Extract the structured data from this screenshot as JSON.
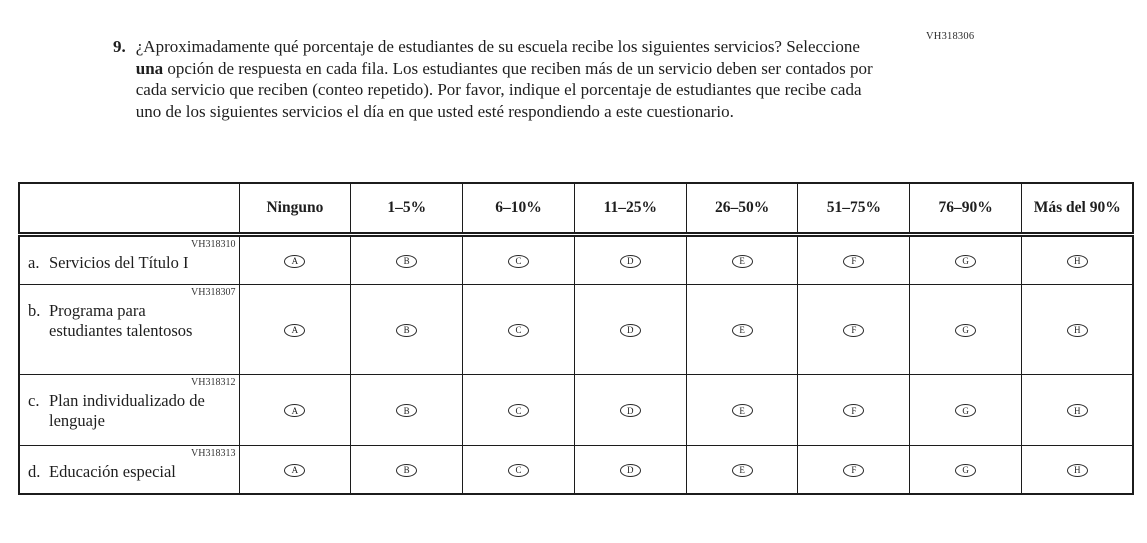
{
  "page": {
    "form_code": "VH318306",
    "background_color": "#ffffff",
    "text_color": "#1e1e1e",
    "border_color": "#1c1c1c"
  },
  "question": {
    "number": "9.",
    "text_before_bold": "¿Aproximadamente qué porcentaje de estudiantes de su escuela recibe los siguientes servicios? Seleccione ",
    "bold_word": "una",
    "text_after_bold": " opción de respuesta en cada fila. Los estudiantes que reciben más de un servicio deben ser contados por cada servicio que reciben (conteo repetido). Por favor, indique el porcentaje de estudiantes que recibe cada uno de los siguientes servicios el día en que usted esté respondiendo a este cuestionario."
  },
  "table": {
    "column_headers": [
      "Ninguno",
      "1–5%",
      "6–10%",
      "11–25%",
      "26–50%",
      "51–75%",
      "76–90%",
      "Más del 90%"
    ],
    "option_letters": [
      "A",
      "B",
      "C",
      "D",
      "E",
      "F",
      "G",
      "H"
    ],
    "rows": [
      {
        "code": "VH318310",
        "item_letter": "a.",
        "label": "Servicios del Título I"
      },
      {
        "code": "VH318307",
        "item_letter": "b.",
        "label": "Programa para estudiantes talentosos"
      },
      {
        "code": "VH318312",
        "item_letter": "c.",
        "label": "Plan individualizado de lenguaje"
      },
      {
        "code": "VH318313",
        "item_letter": "d.",
        "label": "Educación especial"
      }
    ]
  }
}
